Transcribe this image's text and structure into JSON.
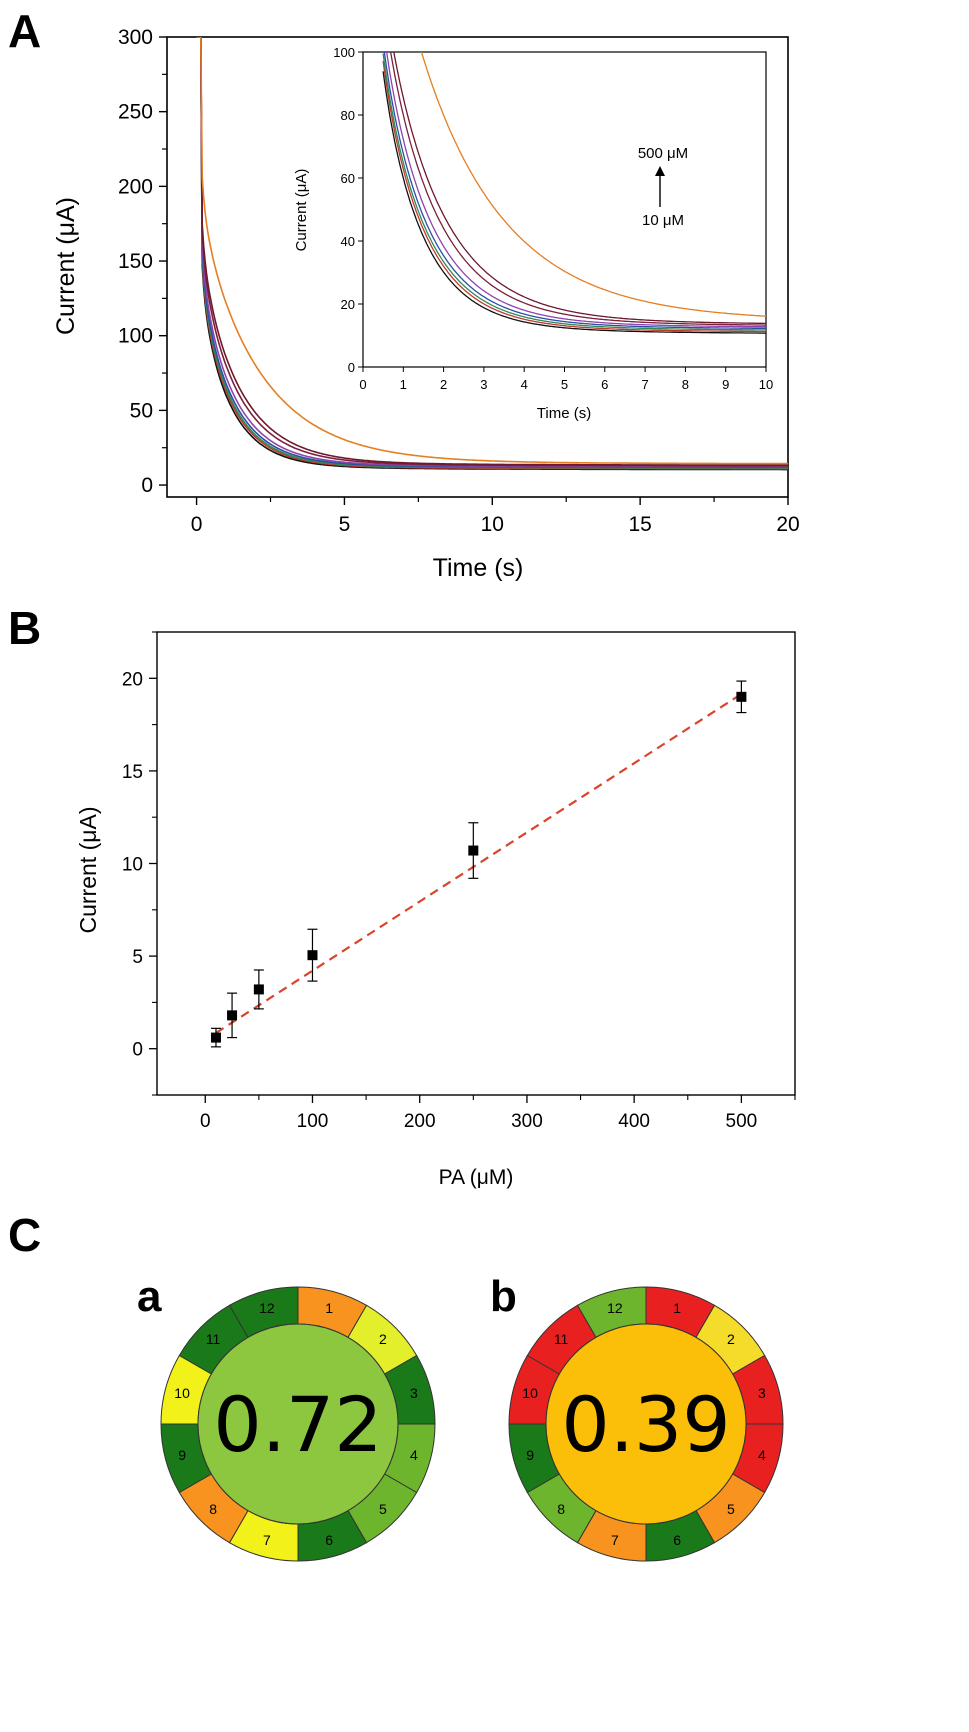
{
  "panels": {
    "A": "A",
    "B": "B",
    "C": "C",
    "Ca": "a",
    "Cb": "b"
  },
  "chart_data": [
    {
      "id": "A",
      "type": "line",
      "xlabel": "Time (s)",
      "ylabel": "Current (μA)",
      "xlim": [
        -1,
        20
      ],
      "ylim": [
        -8,
        300
      ],
      "xticks": [
        0,
        5,
        10,
        15,
        20
      ],
      "yticks": [
        0,
        50,
        100,
        150,
        200,
        250,
        300
      ],
      "series": [
        {
          "color": "#111111",
          "A": 95,
          "tau": 1.05,
          "B": 10,
          "spike": 300
        },
        {
          "color": "#c0392b",
          "A": 98,
          "tau": 1.08,
          "B": 10.5,
          "spike": 300
        },
        {
          "color": "#2e8b57",
          "A": 100,
          "tau": 1.1,
          "B": 11,
          "spike": 300
        },
        {
          "color": "#2c4fa6",
          "A": 103,
          "tau": 1.13,
          "B": 11.5,
          "spike": 300
        },
        {
          "color": "#8e44ad",
          "A": 108,
          "tau": 1.18,
          "B": 12,
          "spike": 300
        },
        {
          "color": "#7a1f3d",
          "A": 115,
          "tau": 1.3,
          "B": 12.5,
          "spike": 300
        },
        {
          "color": "#6d1a2a",
          "A": 120,
          "tau": 1.38,
          "B": 13,
          "spike": 300
        },
        {
          "color": "#e67e22",
          "A": 150,
          "tau": 2.1,
          "B": 14,
          "spike": 300
        }
      ],
      "inset": {
        "xlabel": "Time (s)",
        "ylabel": "Current (μA)",
        "xlim": [
          0,
          10
        ],
        "ylim": [
          0,
          100
        ],
        "xticks": [
          0,
          1,
          2,
          3,
          4,
          5,
          6,
          7,
          8,
          9,
          10
        ],
        "yticks": [
          0,
          20,
          40,
          60,
          80,
          100
        ],
        "annotation_top": "500 μM",
        "annotation_bottom": "10 μM"
      }
    },
    {
      "id": "B",
      "type": "scatter",
      "xlabel": "PA (μM)",
      "ylabel": "Current (μA)",
      "xlim": [
        -45,
        550
      ],
      "ylim": [
        -2.5,
        22.5
      ],
      "xticks": [
        0,
        100,
        200,
        300,
        400,
        500
      ],
      "yticks": [
        0,
        5,
        10,
        15,
        20
      ],
      "points": [
        {
          "x": 10,
          "y": 0.6,
          "err": 0.5
        },
        {
          "x": 25,
          "y": 1.8,
          "err": 1.2
        },
        {
          "x": 50,
          "y": 3.2,
          "err": 1.05
        },
        {
          "x": 100,
          "y": 5.05,
          "err": 1.4
        },
        {
          "x": 250,
          "y": 10.7,
          "err": 1.5
        },
        {
          "x": 500,
          "y": 19.0,
          "err": 0.85
        }
      ],
      "fit": {
        "x": [
          10,
          500
        ],
        "y": [
          0.85,
          19.15
        ],
        "color": "#d9452b"
      }
    }
  ],
  "agree": [
    {
      "id": "a",
      "score": "0.72",
      "center_color": "#8dc63f",
      "segments": [
        {
          "n": "1",
          "color": "#f7931e"
        },
        {
          "n": "2",
          "color": "#e3ef2a"
        },
        {
          "n": "3",
          "color": "#1a7a1a"
        },
        {
          "n": "4",
          "color": "#6cb52d"
        },
        {
          "n": "5",
          "color": "#6cb52d"
        },
        {
          "n": "6",
          "color": "#1a7a1a"
        },
        {
          "n": "7",
          "color": "#f2f21a"
        },
        {
          "n": "8",
          "color": "#f7931e"
        },
        {
          "n": "9",
          "color": "#1a7a1a"
        },
        {
          "n": "10",
          "color": "#f2f21a"
        },
        {
          "n": "11",
          "color": "#1a7a1a"
        },
        {
          "n": "12",
          "color": "#1a7a1a"
        }
      ]
    },
    {
      "id": "b",
      "score": "0.39",
      "center_color": "#fbbf0a",
      "segments": [
        {
          "n": "1",
          "color": "#e82020"
        },
        {
          "n": "2",
          "color": "#f5dc2a"
        },
        {
          "n": "3",
          "color": "#e82020"
        },
        {
          "n": "4",
          "color": "#e82020"
        },
        {
          "n": "5",
          "color": "#f7931e"
        },
        {
          "n": "6",
          "color": "#1a7a1a"
        },
        {
          "n": "7",
          "color": "#f7931e"
        },
        {
          "n": "8",
          "color": "#6cb52d"
        },
        {
          "n": "9",
          "color": "#1a7a1a"
        },
        {
          "n": "10",
          "color": "#e82020"
        },
        {
          "n": "11",
          "color": "#e82020"
        },
        {
          "n": "12",
          "color": "#6cb52d"
        }
      ]
    }
  ]
}
